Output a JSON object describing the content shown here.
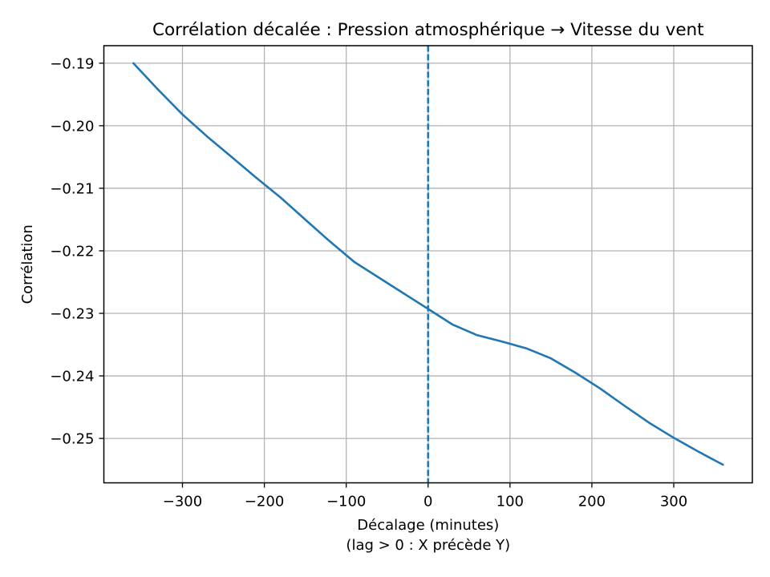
{
  "chart_data": {
    "type": "line",
    "title": "Corrélation décalée : Pression atmosphérique → Vitesse du vent",
    "xlabel": "Décalage (minutes)",
    "xlabel_sub": "(lag > 0 : X précède Y)",
    "ylabel": "Corrélation",
    "xlim": [
      -396,
      396
    ],
    "ylim": [
      -0.2571,
      -0.1872
    ],
    "xticks": [
      -300,
      -200,
      -100,
      0,
      100,
      200,
      300
    ],
    "yticks": [
      -0.19,
      -0.2,
      -0.21,
      -0.22,
      -0.23,
      -0.24,
      -0.25
    ],
    "grid": true,
    "legend": false,
    "colors": {
      "line": "#1f77b4",
      "vline": "#1f77b4",
      "grid": "#b3b3b3",
      "spine": "#000000",
      "background": "#ffffff"
    },
    "vline": {
      "x": 0,
      "style": "dashed"
    },
    "series": [
      {
        "name": "correlation",
        "x": [
          -360,
          -330,
          -300,
          -270,
          -240,
          -210,
          -180,
          -150,
          -120,
          -90,
          -60,
          -30,
          0,
          30,
          60,
          90,
          120,
          150,
          180,
          210,
          240,
          270,
          300,
          330,
          360
        ],
        "y": [
          -0.19,
          -0.1942,
          -0.1982,
          -0.2017,
          -0.205,
          -0.2083,
          -0.2115,
          -0.215,
          -0.2185,
          -0.2218,
          -0.2243,
          -0.2268,
          -0.2293,
          -0.2318,
          -0.2335,
          -0.2345,
          -0.2356,
          -0.2372,
          -0.2395,
          -0.242,
          -0.2448,
          -0.2475,
          -0.2499,
          -0.2521,
          -0.2542
        ]
      }
    ]
  }
}
